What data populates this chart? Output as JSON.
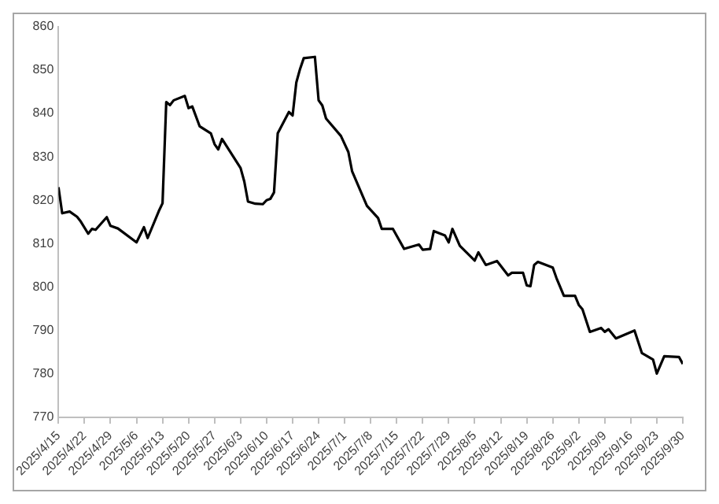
{
  "chart_data": {
    "type": "line",
    "marker": "none",
    "xlim": [
      "2025-04-15",
      "2025-09-30"
    ],
    "xticks": [
      {
        "value": "2025-04-15",
        "label": "2025/4/15"
      },
      {
        "value": "2025-04-22",
        "label": "2025/4/22"
      },
      {
        "value": "2025-04-29",
        "label": "2025/4/29"
      },
      {
        "value": "2025-05-06",
        "label": "2025/5/6"
      },
      {
        "value": "2025-05-13",
        "label": "2025/5/13"
      },
      {
        "value": "2025-05-20",
        "label": "2025/5/20"
      },
      {
        "value": "2025-05-27",
        "label": "2025/5/27"
      },
      {
        "value": "2025-06-03",
        "label": "2025/6/3"
      },
      {
        "value": "2025-06-10",
        "label": "2025/6/10"
      },
      {
        "value": "2025-06-17",
        "label": "2025/6/17"
      },
      {
        "value": "2025-06-24",
        "label": "2025/6/24"
      },
      {
        "value": "2025-07-01",
        "label": "2025/7/1"
      },
      {
        "value": "2025-07-08",
        "label": "2025/7/8"
      },
      {
        "value": "2025-07-15",
        "label": "2025/7/15"
      },
      {
        "value": "2025-07-22",
        "label": "2025/7/22"
      },
      {
        "value": "2025-07-29",
        "label": "2025/7/29"
      },
      {
        "value": "2025-08-05",
        "label": "2025/8/5"
      },
      {
        "value": "2025-08-12",
        "label": "2025/8/12"
      },
      {
        "value": "2025-08-19",
        "label": "2025/8/19"
      },
      {
        "value": "2025-08-26",
        "label": "2025/8/26"
      },
      {
        "value": "2025-09-02",
        "label": "2025/9/2"
      },
      {
        "value": "2025-09-09",
        "label": "2025/9/9"
      },
      {
        "value": "2025-09-16",
        "label": "2025/9/16"
      },
      {
        "value": "2025-09-23",
        "label": "2025/9/23"
      },
      {
        "value": "2025-09-30",
        "label": "2025/9/30"
      }
    ],
    "ylim": [
      770,
      860
    ],
    "yticks": [
      770,
      780,
      790,
      800,
      810,
      820,
      830,
      840,
      850,
      860
    ],
    "series": [
      {
        "color": "#000000",
        "x": [
          "2025-04-15",
          "2025-04-16",
          "2025-04-18",
          "2025-04-20",
          "2025-04-21",
          "2025-04-23",
          "2025-04-24",
          "2025-04-25",
          "2025-04-28",
          "2025-04-29",
          "2025-05-01",
          "2025-05-06",
          "2025-05-08",
          "2025-05-09",
          "2025-05-12",
          "2025-05-13",
          "2025-05-14",
          "2025-05-15",
          "2025-05-16",
          "2025-05-19",
          "2025-05-20",
          "2025-05-21",
          "2025-05-23",
          "2025-05-26",
          "2025-05-27",
          "2025-05-28",
          "2025-05-29",
          "2025-06-03",
          "2025-06-04",
          "2025-06-05",
          "2025-06-07",
          "2025-06-09",
          "2025-06-10",
          "2025-06-11",
          "2025-06-12",
          "2025-06-13",
          "2025-06-16",
          "2025-06-17",
          "2025-06-18",
          "2025-06-19",
          "2025-06-20",
          "2025-06-23",
          "2025-06-24",
          "2025-06-25",
          "2025-06-26",
          "2025-06-30",
          "2025-07-02",
          "2025-07-03",
          "2025-07-07",
          "2025-07-10",
          "2025-07-11",
          "2025-07-14",
          "2025-07-17",
          "2025-07-21",
          "2025-07-22",
          "2025-07-24",
          "2025-07-25",
          "2025-07-28",
          "2025-07-29",
          "2025-07-30",
          "2025-08-01",
          "2025-08-05",
          "2025-08-06",
          "2025-08-08",
          "2025-08-11",
          "2025-08-12",
          "2025-08-14",
          "2025-08-15",
          "2025-08-18",
          "2025-08-19",
          "2025-08-20",
          "2025-08-21",
          "2025-08-22",
          "2025-08-26",
          "2025-08-27",
          "2025-08-29",
          "2025-09-01",
          "2025-09-02",
          "2025-09-03",
          "2025-09-05",
          "2025-09-08",
          "2025-09-09",
          "2025-09-10",
          "2025-09-12",
          "2025-09-17",
          "2025-09-19",
          "2025-09-22",
          "2025-09-23",
          "2025-09-25",
          "2025-09-29",
          "2025-09-30"
        ],
        "values": [
          823.0,
          817.0,
          817.4,
          816.2,
          815.1,
          812.3,
          813.4,
          813.2,
          816.1,
          814.1,
          813.5,
          810.3,
          813.8,
          811.3,
          817.5,
          819.3,
          842.6,
          841.9,
          843.0,
          844.0,
          841.2,
          841.6,
          837.0,
          835.4,
          832.9,
          831.7,
          834.1,
          827.4,
          824.3,
          819.7,
          819.2,
          819.1,
          820.0,
          820.3,
          821.8,
          835.4,
          840.3,
          839.5,
          847.1,
          850.2,
          852.7,
          853.0,
          843.0,
          841.8,
          838.8,
          834.8,
          831.1,
          826.7,
          818.7,
          815.9,
          813.4,
          813.4,
          808.8,
          809.8,
          808.6,
          808.8,
          812.9,
          811.9,
          810.3,
          813.4,
          809.5,
          806.1,
          808.0,
          805.1,
          806.0,
          804.9,
          802.7,
          803.3,
          803.3,
          800.4,
          800.2,
          805.1,
          805.8,
          804.5,
          802.1,
          798.0,
          798.0,
          795.9,
          794.9,
          789.7,
          790.6,
          789.7,
          790.3,
          788.2,
          790.0,
          784.8,
          783.3,
          780.1,
          784.1,
          783.9,
          782.3
        ]
      }
    ]
  }
}
